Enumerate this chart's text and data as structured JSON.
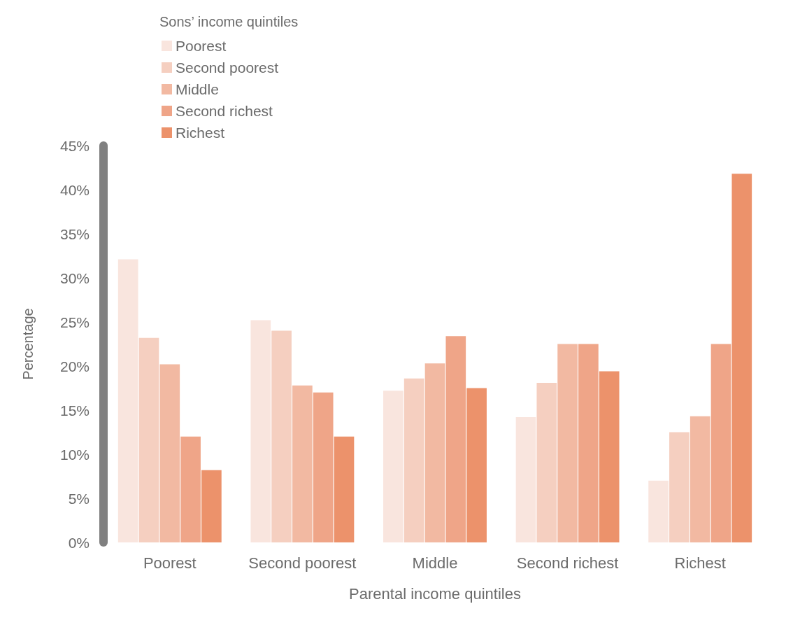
{
  "chart_data": {
    "type": "bar",
    "xlabel": "Parental income quintiles",
    "ylabel": "Percentage",
    "legend_title": "Sons’ income quintiles",
    "legend": "top left",
    "grid": false,
    "categories": [
      "Poorest",
      "Second poorest",
      "Middle",
      "Second richest",
      "Richest"
    ],
    "series": [
      {
        "name": "Poorest",
        "color": "#f9e5de",
        "values": [
          32.1,
          25.2,
          17.2,
          14.2,
          7.0
        ]
      },
      {
        "name": "Second poorest",
        "color": "#f5cfc0",
        "values": [
          23.2,
          24.0,
          18.6,
          18.1,
          12.5
        ]
      },
      {
        "name": "Middle",
        "color": "#f2b9a2",
        "values": [
          20.2,
          17.8,
          20.3,
          22.5,
          14.3
        ]
      },
      {
        "name": "Second richest",
        "color": "#efa588",
        "values": [
          12.0,
          17.0,
          23.4,
          22.5,
          22.5
        ]
      },
      {
        "name": "Richest",
        "color": "#ec926b",
        "values": [
          8.2,
          12.0,
          17.5,
          19.4,
          41.8
        ]
      }
    ],
    "ylim": [
      0,
      45
    ],
    "yticks": [
      {
        "value": 0,
        "label": "0%"
      },
      {
        "value": 5,
        "label": "5%"
      },
      {
        "value": 10,
        "label": "10%"
      },
      {
        "value": 15,
        "label": "15%"
      },
      {
        "value": 20,
        "label": "20%"
      },
      {
        "value": 25,
        "label": "25%"
      },
      {
        "value": 30,
        "label": "30%"
      },
      {
        "value": 35,
        "label": "35%"
      },
      {
        "value": 40,
        "label": "40%"
      },
      {
        "value": 45,
        "label": "45%"
      }
    ]
  }
}
